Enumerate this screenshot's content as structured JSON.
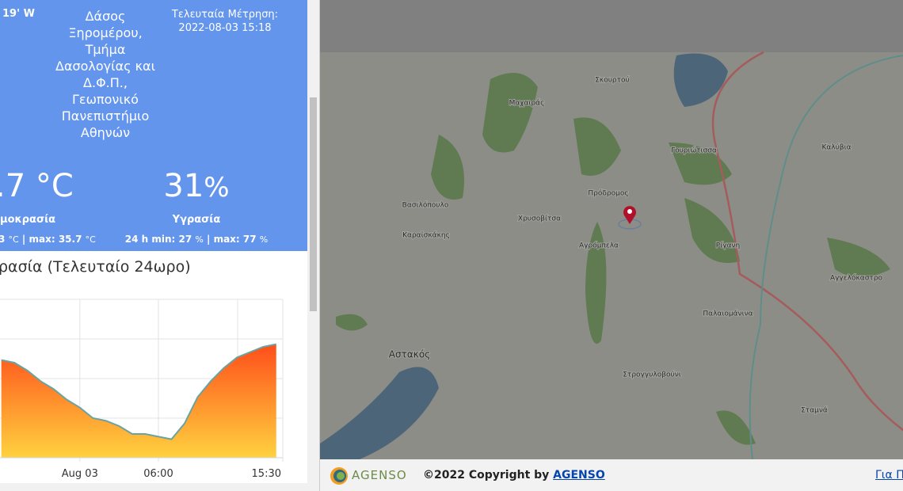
{
  "station": {
    "coord": "19' W",
    "name_lines": [
      "Δάσος",
      "Ξηρομέρου,",
      "Τμήμα",
      "Δασολογίας και",
      "Δ.Φ.Π.,",
      "Γεωπονικό",
      "Πανεπιστήμιο",
      "Αθηνών"
    ],
    "last_label": "Τελευταία Μέτρηση:",
    "last_time": "2022-08-03 15:18"
  },
  "temperature": {
    "value": ".7",
    "unit": "°C",
    "label": "μοκρασία",
    "min": "3",
    "min_unit": "°C",
    "max_label": "| max:",
    "max": "35.7",
    "max_unit": "°C"
  },
  "humidity": {
    "value": "31",
    "unit": "%",
    "label": "Υγρασία",
    "min_label": "24 h min:",
    "min": "27",
    "min_unit": "%",
    "max_label": "| max:",
    "max": "77",
    "max_unit": "%"
  },
  "chart_data": {
    "type": "area",
    "title": "ρασία (Τελευταίο 24ωρο)",
    "x": [
      -6,
      -5,
      -4,
      -3,
      -2,
      -1,
      0,
      1,
      2,
      3,
      4,
      5,
      6,
      7,
      8,
      9,
      10,
      11,
      12,
      13,
      14,
      15
    ],
    "values": [
      57,
      56,
      53,
      49,
      46,
      42,
      39,
      35,
      34,
      32,
      29,
      29,
      28,
      27,
      33,
      43,
      49,
      54,
      58,
      60,
      62,
      63
    ],
    "xlim": [
      -6.1,
      15.5
    ],
    "ylim": [
      20,
      80
    ],
    "xticks": [
      {
        "value": 0,
        "label": "Aug 03"
      },
      {
        "value": 6,
        "label": "06:00"
      },
      {
        "value": 15.5,
        "label": "15:30"
      }
    ]
  },
  "map": {
    "labels": [
      "Σκουρτού",
      "Μαχαιράς",
      "Γουριώτισσα",
      "Καλύβια",
      "Πρόδρομος",
      "Χρυσοβίτσα",
      "Βασιλόπουλο",
      "Καραϊσκάκης",
      "Αγρόμπελα",
      "Ρίγανη",
      "Αγγελόκαστρο",
      "Παλαιομάνινα",
      "Αστακός",
      "Στρογγυλοβούνι",
      "Σταμνά"
    ]
  },
  "footer": {
    "logo": "AGENSO",
    "copyright": "©2022 Copyright by",
    "link": "AGENSO",
    "about": "Για Π"
  }
}
